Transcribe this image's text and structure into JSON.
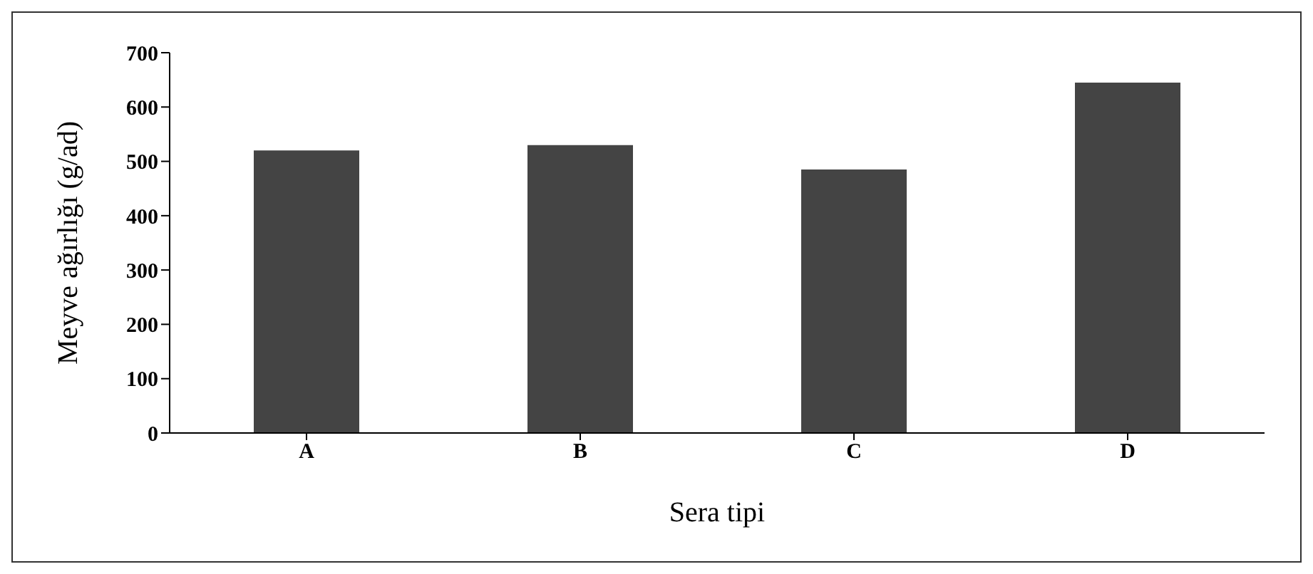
{
  "chart_data": {
    "type": "bar",
    "xlabel": "Sera tipi",
    "ylabel": "Meyve ağırlığı (g/ad)",
    "categories": [
      "A",
      "B",
      "C",
      "D"
    ],
    "values": [
      520,
      530,
      485,
      645
    ],
    "color": "#444444",
    "ylim": [
      0,
      700
    ],
    "yticks": [
      0,
      100,
      200,
      300,
      400,
      500,
      600,
      700
    ],
    "grid": false,
    "legend": false
  }
}
